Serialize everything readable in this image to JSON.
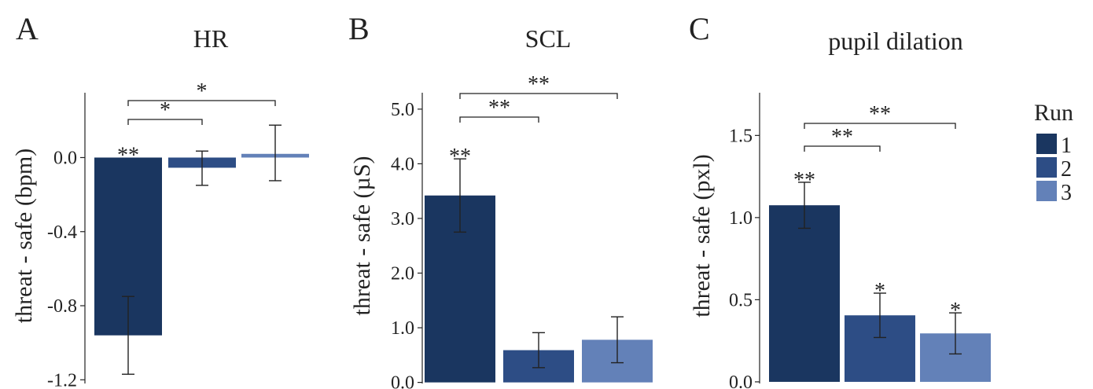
{
  "legend": {
    "title": "Run",
    "items": [
      {
        "label": "1",
        "color": "#1a3660"
      },
      {
        "label": "2",
        "color": "#2d4d85"
      },
      {
        "label": "3",
        "color": "#6381b8"
      }
    ]
  },
  "chart_data": [
    {
      "panel": "A",
      "type": "bar",
      "title": "HR",
      "ylabel": "threat - safe (bpm)",
      "xlabel": "",
      "categories": [
        "1",
        "2",
        "3"
      ],
      "values": [
        -0.96,
        -0.055,
        0.02
      ],
      "error_low": [
        -1.17,
        -0.15,
        -0.125
      ],
      "error_high": [
        -0.75,
        0.035,
        0.175
      ],
      "bar_labels": [
        "**",
        "",
        ""
      ],
      "ylim": [
        -1.22,
        0.35
      ],
      "yticks": [
        0.0,
        -0.4,
        -0.8,
        -1.2
      ],
      "ytick_labels": [
        "0.0",
        "-0.4",
        "-0.8",
        "-1.2"
      ],
      "comparisons": [
        {
          "from": 0,
          "to": 1,
          "label": "*"
        },
        {
          "from": 0,
          "to": 2,
          "label": "*"
        }
      ]
    },
    {
      "panel": "B",
      "type": "bar",
      "title": "SCL",
      "ylabel": "threat - safe (µS)",
      "xlabel": "",
      "categories": [
        "1",
        "2",
        "3"
      ],
      "values": [
        3.42,
        0.59,
        0.78
      ],
      "error_low": [
        2.75,
        0.27,
        0.36
      ],
      "error_high": [
        4.09,
        0.91,
        1.2
      ],
      "bar_labels": [
        "**",
        "",
        ""
      ],
      "ylim": [
        -0.02,
        5.3
      ],
      "yticks": [
        0.0,
        1.0,
        2.0,
        3.0,
        4.0,
        5.0
      ],
      "ytick_labels": [
        "0.0",
        "1.0",
        "2.0",
        "3.0",
        "4.0",
        "5.0"
      ],
      "comparisons": [
        {
          "from": 0,
          "to": 1,
          "label": "**"
        },
        {
          "from": 0,
          "to": 2,
          "label": "**"
        }
      ]
    },
    {
      "panel": "C",
      "type": "bar",
      "title": "pupil dilation",
      "ylabel": "threat - safe (pxl)",
      "xlabel": "",
      "categories": [
        "1",
        "2",
        "3"
      ],
      "values": [
        1.075,
        0.405,
        0.295
      ],
      "error_low": [
        0.935,
        0.27,
        0.17
      ],
      "error_high": [
        1.215,
        0.54,
        0.42
      ],
      "bar_labels": [
        "**",
        "*",
        "*"
      ],
      "ylim": [
        -0.01,
        1.76
      ],
      "yticks": [
        0.0,
        0.5,
        1.0,
        1.5
      ],
      "ytick_labels": [
        "0.0",
        "0.5",
        "1.0",
        "1.5"
      ],
      "comparisons": [
        {
          "from": 0,
          "to": 1,
          "label": "**"
        },
        {
          "from": 0,
          "to": 2,
          "label": "**"
        }
      ]
    }
  ]
}
